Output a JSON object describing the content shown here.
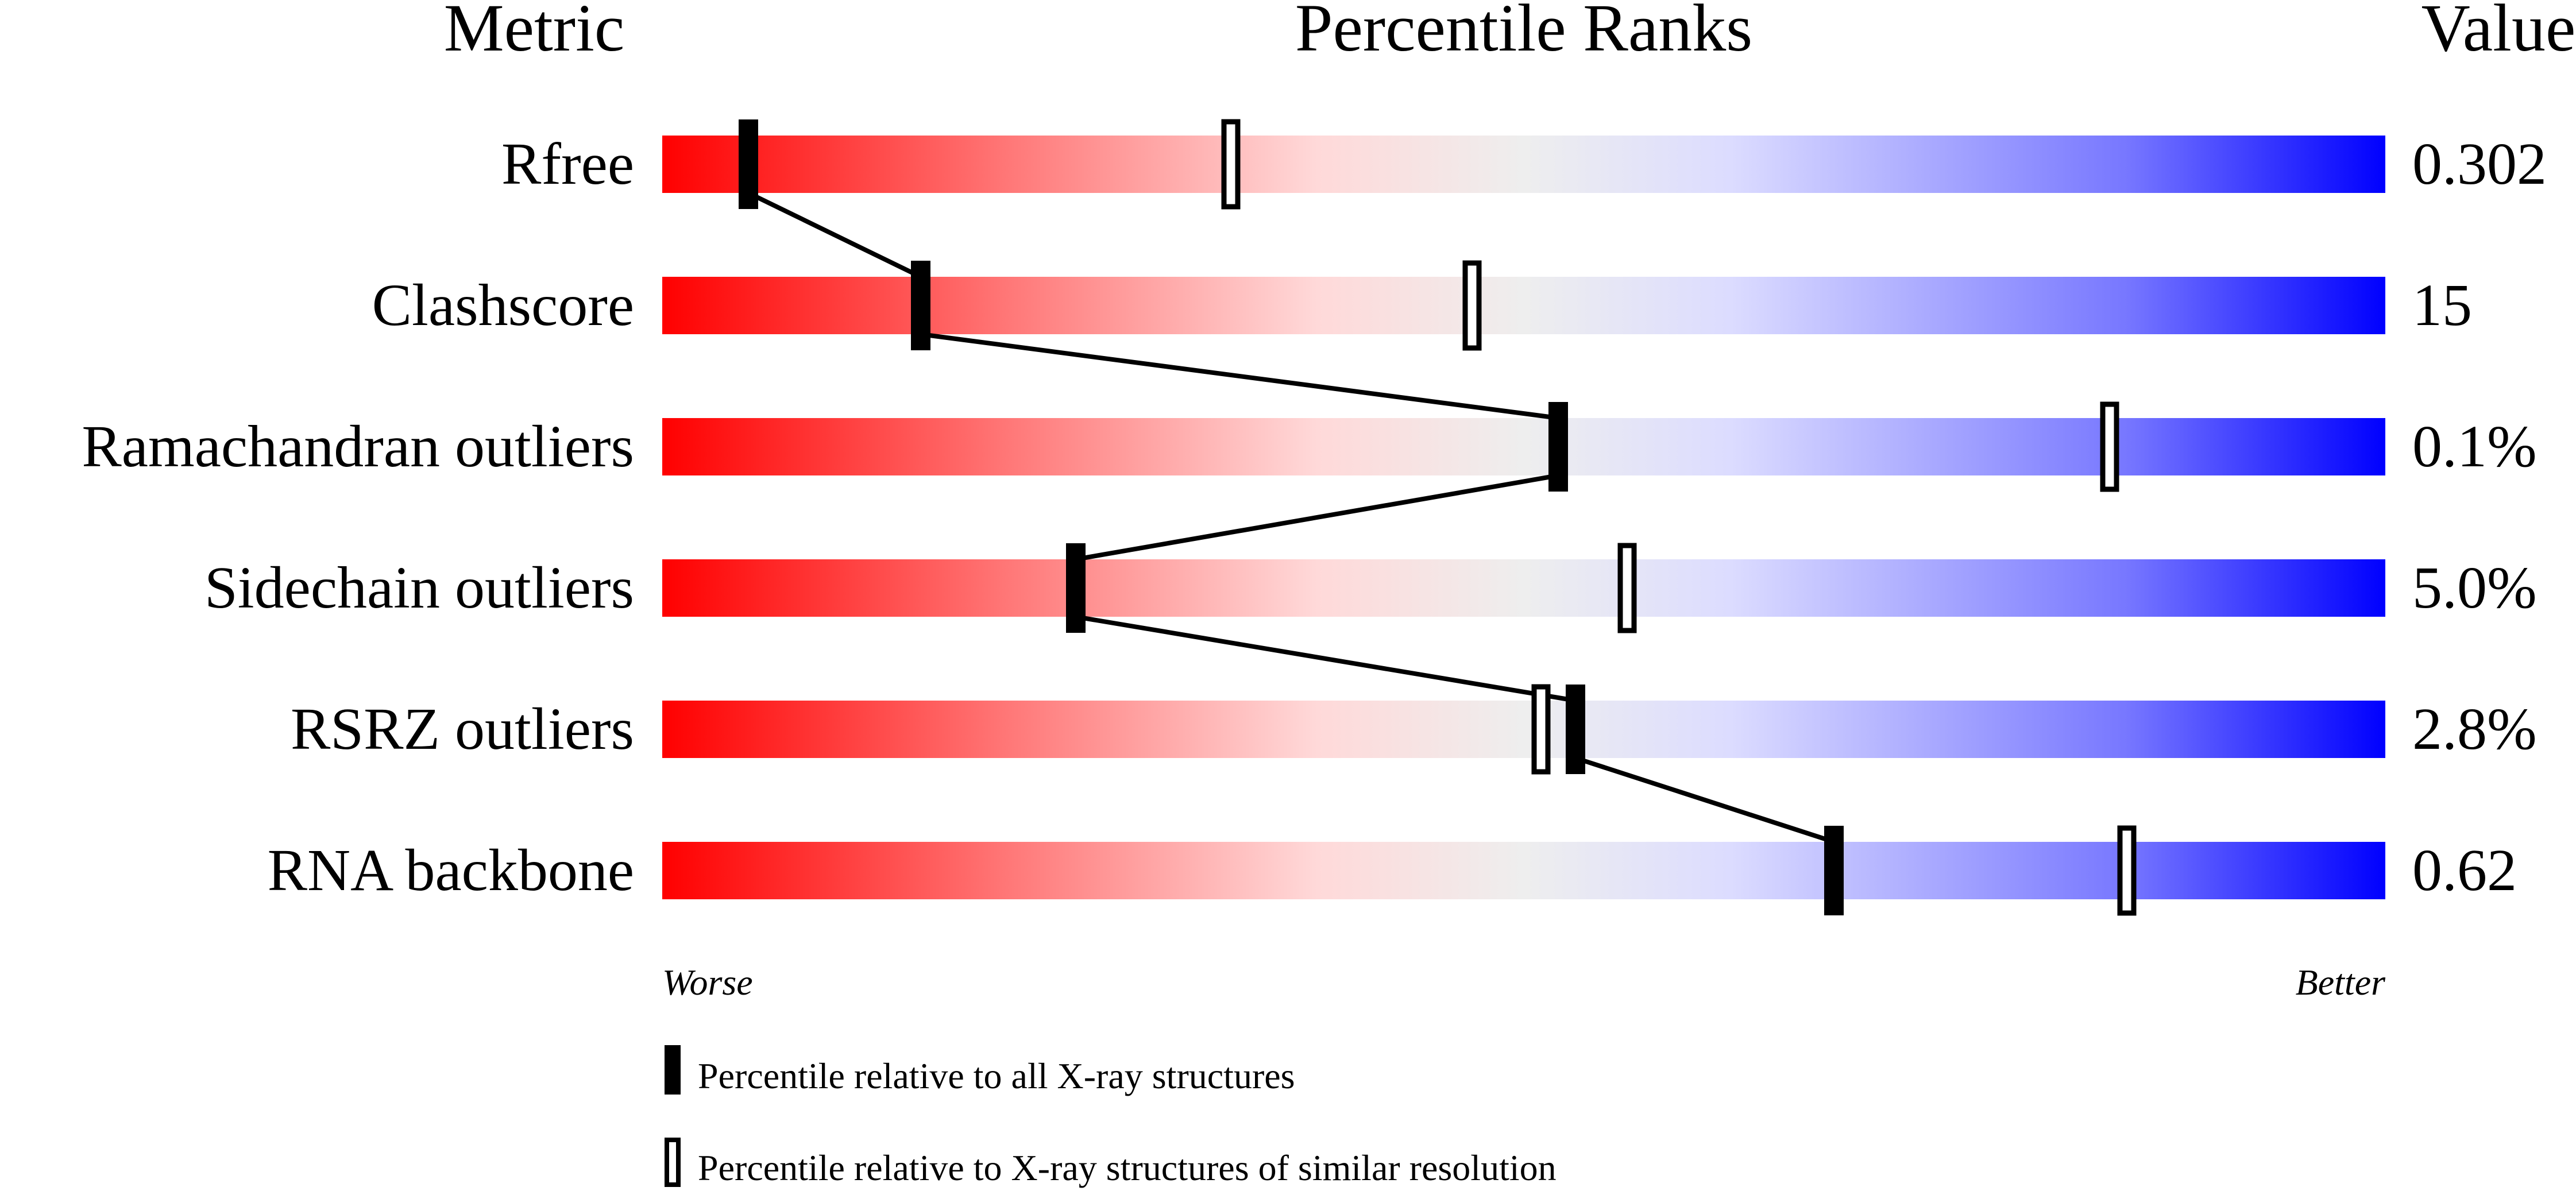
{
  "chart_data": {
    "type": "percentile-bar",
    "headers": {
      "metric": "Metric",
      "ranks": "Percentile Ranks",
      "value": "Value"
    },
    "xlim": [
      0,
      100
    ],
    "axis": {
      "left": "Worse",
      "right": "Better"
    },
    "gradient_colors": [
      "#ff0000",
      "#ff7777",
      "#ffd9d9",
      "#eeeeee",
      "#dcdcff",
      "#7777ff",
      "#0000ff"
    ],
    "rows": [
      {
        "metric": "Rfree",
        "value": "0.302",
        "all_percentile": 5,
        "similar_percentile": 33
      },
      {
        "metric": "Clashscore",
        "value": "15",
        "all_percentile": 15,
        "similar_percentile": 47
      },
      {
        "metric": "Ramachandran outliers",
        "value": "0.1%",
        "all_percentile": 52,
        "similar_percentile": 84
      },
      {
        "metric": "Sidechain outliers",
        "value": "5.0%",
        "all_percentile": 24,
        "similar_percentile": 56
      },
      {
        "metric": "RSRZ outliers",
        "value": "2.8%",
        "all_percentile": 53,
        "similar_percentile": 51
      },
      {
        "metric": "RNA backbone",
        "value": "0.62",
        "all_percentile": 68,
        "similar_percentile": 85
      }
    ],
    "legend": [
      {
        "marker": "filled",
        "label": "Percentile relative to all X-ray structures"
      },
      {
        "marker": "open",
        "label": "Percentile relative to X-ray structures of similar resolution"
      }
    ]
  }
}
